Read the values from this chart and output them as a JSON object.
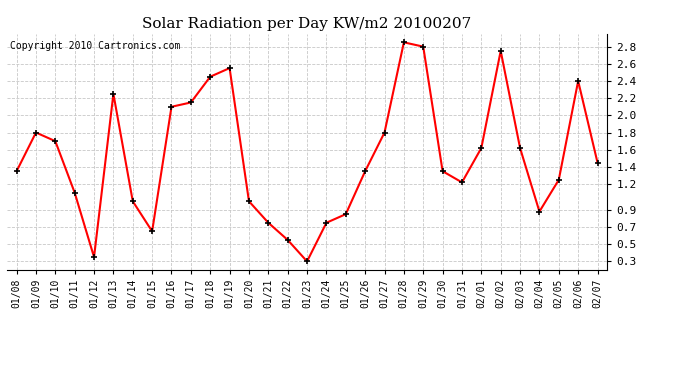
{
  "title": "Solar Radiation per Day KW/m2 20100207",
  "copyright_text": "Copyright 2010 Cartronics.com",
  "dates": [
    "01/08",
    "01/09",
    "01/10",
    "01/11",
    "01/12",
    "01/13",
    "01/14",
    "01/15",
    "01/16",
    "01/17",
    "01/18",
    "01/19",
    "01/20",
    "01/21",
    "01/22",
    "01/23",
    "01/24",
    "01/25",
    "01/26",
    "01/27",
    "01/28",
    "01/29",
    "01/30",
    "01/31",
    "02/01",
    "02/02",
    "02/03",
    "02/04",
    "02/05",
    "02/06",
    "02/07"
  ],
  "values": [
    1.35,
    1.8,
    1.7,
    1.1,
    0.35,
    2.25,
    1.0,
    0.65,
    2.1,
    2.15,
    2.45,
    2.55,
    1.0,
    0.75,
    0.55,
    0.3,
    0.75,
    0.85,
    1.35,
    1.8,
    2.85,
    2.8,
    1.35,
    1.22,
    1.62,
    2.75,
    1.62,
    0.88,
    1.25,
    2.4,
    1.45
  ],
  "line_color": "#ff0000",
  "marker": "+",
  "marker_color": "#000000",
  "marker_size": 5,
  "line_width": 1.5,
  "ylim": [
    0.2,
    2.95
  ],
  "yticks": [
    0.3,
    0.5,
    0.7,
    0.9,
    1.2,
    1.4,
    1.6,
    1.8,
    2.0,
    2.2,
    2.4,
    2.6,
    2.8
  ],
  "background_color": "#ffffff",
  "grid_color": "#c8c8c8",
  "title_fontsize": 11,
  "copyright_fontsize": 7,
  "tick_label_fontsize": 7,
  "ytick_fontsize": 8
}
